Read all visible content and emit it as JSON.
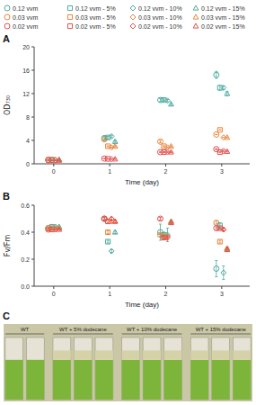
{
  "chart_data": [
    {
      "type": "scatter",
      "title": "A",
      "xlabel": "Time (day)",
      "ylabel": "OD₇₃₀",
      "xlim": [
        -0.35,
        3.5
      ],
      "ylim": [
        0,
        20
      ],
      "xticks": [
        0,
        1,
        2,
        3
      ],
      "yticks": [
        0,
        4,
        8,
        12,
        16,
        20
      ],
      "legend": "top",
      "series": [
        {
          "name": "0.12 vvm",
          "color": "#4BAAA0",
          "marker": "circle",
          "x": [
            0,
            1,
            2,
            3
          ],
          "values": [
            0.7,
            4.4,
            10.9,
            15.2
          ],
          "yerr": [
            0.05,
            0.25,
            0.25,
            0.6
          ]
        },
        {
          "name": "0.03 vvm",
          "color": "#E8853A",
          "marker": "circle",
          "x": [
            0,
            1,
            2,
            3
          ],
          "values": [
            0.7,
            4.2,
            3.8,
            5.0
          ],
          "yerr": [
            0.05,
            0.1,
            0.2,
            0.0
          ]
        },
        {
          "name": "0.02 vvm",
          "color": "#E05050",
          "marker": "circle",
          "x": [
            0,
            1,
            2,
            3
          ],
          "values": [
            0.6,
            0.9,
            2.0,
            2.5
          ],
          "yerr": [
            0.05,
            0.05,
            0.1,
            0.1
          ]
        },
        {
          "name": "0.12 vvm - 5%",
          "color": "#4BAAA0",
          "marker": "square",
          "x": [
            0,
            1,
            2,
            3
          ],
          "values": [
            0.7,
            4.5,
            10.9,
            13.0
          ],
          "yerr": [
            0.05,
            0.2,
            0.2,
            0.4
          ]
        },
        {
          "name": "0.03 vvm - 5%",
          "color": "#E8853A",
          "marker": "square",
          "x": [
            0,
            1,
            2,
            3
          ],
          "values": [
            0.65,
            3.0,
            3.0,
            5.8
          ],
          "yerr": [
            0.05,
            0.1,
            0.1,
            0.0
          ]
        },
        {
          "name": "0.02 vvm - 5%",
          "color": "#E05050",
          "marker": "square",
          "x": [
            0,
            1,
            2,
            3
          ],
          "values": [
            0.6,
            0.85,
            2.0,
            2.0
          ],
          "yerr": [
            0.05,
            0.05,
            0.1,
            0.1
          ]
        },
        {
          "name": "0.12 vvm - 10%",
          "color": "#4BAAA0",
          "marker": "diamond",
          "x": [
            0,
            1,
            2,
            3
          ],
          "values": [
            0.65,
            4.7,
            10.8,
            13.0
          ],
          "yerr": [
            0.05,
            0.2,
            0.2,
            0.3
          ]
        },
        {
          "name": "0.03 vvm - 10%",
          "color": "#E8853A",
          "marker": "diamond",
          "x": [
            0,
            1,
            2,
            3
          ],
          "values": [
            0.65,
            2.8,
            2.8,
            4.5
          ],
          "yerr": [
            0.05,
            0.1,
            0.1,
            0.0
          ]
        },
        {
          "name": "0.02 vvm - 10%",
          "color": "#E05050",
          "marker": "diamond",
          "x": [
            0,
            1,
            2,
            3
          ],
          "values": [
            0.6,
            0.8,
            2.0,
            2.2
          ],
          "yerr": [
            0.05,
            0.05,
            0.1,
            0.1
          ]
        },
        {
          "name": "0.12 vvm - 15%",
          "color": "#4BAAA0",
          "marker": "triangle",
          "x": [
            0,
            1,
            2,
            3
          ],
          "values": [
            0.7,
            3.8,
            10.2,
            12.0
          ],
          "yerr": [
            0.05,
            0.15,
            0.2,
            0.4
          ]
        },
        {
          "name": "0.03 vvm - 15%",
          "color": "#E8853A",
          "marker": "triangle",
          "x": [
            0,
            1,
            2,
            3
          ],
          "values": [
            0.65,
            3.0,
            3.0,
            4.5
          ],
          "yerr": [
            0.05,
            0.1,
            0.1,
            0.0
          ]
        },
        {
          "name": "0.02 vvm - 15%",
          "color": "#E05050",
          "marker": "triangle",
          "x": [
            0,
            1,
            2,
            3
          ],
          "values": [
            0.6,
            0.8,
            2.0,
            2.1
          ],
          "yerr": [
            0.05,
            0.05,
            0.1,
            0.1
          ]
        }
      ]
    },
    {
      "type": "scatter",
      "title": "B",
      "xlabel": "Time (day)",
      "ylabel": "Fv/Fm",
      "xlim": [
        -0.35,
        3.5
      ],
      "ylim": [
        0,
        0.6
      ],
      "xticks": [
        0,
        1,
        2,
        3
      ],
      "yticks": [
        {
          "value": 0,
          "label": "0.0"
        },
        0.2,
        0.4,
        0.6
      ],
      "series": [
        {
          "color": "#4BAAA0",
          "marker": "circle",
          "x": [
            0,
            1,
            2,
            3
          ],
          "values": [
            0.43,
            0.5,
            0.4,
            0.13
          ],
          "yerr": [
            0.005,
            0.01,
            0.06,
            0.06
          ]
        },
        {
          "color": "#E8853A",
          "marker": "circle",
          "x": [
            0,
            1,
            2,
            3
          ],
          "values": [
            0.43,
            0.5,
            0.38,
            0.47
          ],
          "yerr": [
            0.005,
            0.01,
            0.01,
            0.01
          ]
        },
        {
          "color": "#E05050",
          "marker": "circle",
          "x": [
            0,
            1,
            2,
            3
          ],
          "values": [
            0.42,
            0.5,
            0.5,
            0.43
          ],
          "yerr": [
            0.005,
            0.01,
            0.01,
            0.01
          ]
        },
        {
          "color": "#4BAAA0",
          "marker": "square",
          "x": [
            0,
            1,
            2,
            3
          ],
          "values": [
            0.44,
            0.33,
            0.38,
            0.45
          ],
          "yerr": [
            0.005,
            0.01,
            0.02,
            0.02
          ]
        },
        {
          "color": "#E8853A",
          "marker": "square",
          "x": [
            0,
            1,
            2,
            3
          ],
          "values": [
            0.43,
            0.4,
            0.37,
            0.33
          ],
          "yerr": [
            0.005,
            0.01,
            0.01,
            0.01
          ]
        },
        {
          "color": "#E05050",
          "marker": "square",
          "x": [
            0,
            1,
            2,
            3
          ],
          "values": [
            0.42,
            0.48,
            0.36,
            0.43
          ],
          "yerr": [
            0.005,
            0.01,
            0.01,
            0.01
          ]
        },
        {
          "color": "#4BAAA0",
          "marker": "diamond",
          "x": [
            0,
            1,
            2,
            3
          ],
          "values": [
            0.44,
            0.26,
            0.38,
            0.1
          ],
          "yerr": [
            0.005,
            0.01,
            0.05,
            0.05
          ]
        },
        {
          "color": "#E8853A",
          "marker": "diamond",
          "x": [
            0,
            1,
            2,
            3
          ],
          "values": [
            0.43,
            0.48,
            0.37,
            0.42
          ],
          "yerr": [
            0.005,
            0.01,
            0.01,
            0.01
          ]
        },
        {
          "color": "#E05050",
          "marker": "diamond",
          "x": [
            0,
            1,
            2,
            3
          ],
          "values": [
            0.42,
            0.5,
            0.36,
            0.42
          ],
          "yerr": [
            0.005,
            0.01,
            0.01,
            0.01
          ]
        },
        {
          "color": "#4BAAA0",
          "marker": "triangle",
          "x": [
            0,
            1,
            2,
            3
          ],
          "values": [
            0.44,
            0.4,
            0.48,
            0.28
          ],
          "yerr": [
            0.005,
            0.01,
            0.01,
            0.01
          ]
        },
        {
          "color": "#E8853A",
          "marker": "triangle",
          "x": [
            0,
            1,
            2,
            3
          ],
          "values": [
            0.43,
            0.48,
            0.48,
            0.28
          ],
          "yerr": [
            0.005,
            0.01,
            0.01,
            0.01
          ]
        },
        {
          "color": "#E05050",
          "marker": "triangle",
          "x": [
            0,
            1,
            2,
            3
          ],
          "values": [
            0.42,
            0.48,
            0.47,
            0.27
          ],
          "yerr": [
            0.005,
            0.01,
            0.01,
            0.01
          ]
        }
      ]
    },
    {
      "type": "illustration",
      "title": "C",
      "categories": [
        "WT",
        "WT + 5% dodecane",
        "WT + 10% dodecane",
        "WT + 15% dodecane"
      ],
      "values": [
        2,
        3,
        3,
        3
      ],
      "has_dodecane": [
        false,
        true,
        true,
        true
      ],
      "color": "#7DB53A"
    }
  ]
}
